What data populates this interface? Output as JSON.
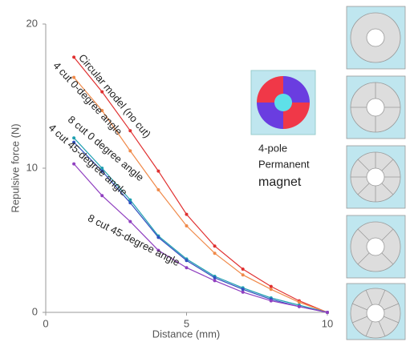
{
  "chart_data": {
    "type": "line",
    "x_label": "Distance (mm)",
    "y_label": "Repulsive force (N)",
    "x": [
      1,
      2,
      3,
      4,
      5,
      6,
      7,
      8,
      9,
      10
    ],
    "series": [
      {
        "name": "Circular model (no cut)",
        "color": "#e03030",
        "values": [
          17.7,
          15.3,
          12.6,
          9.8,
          6.8,
          4.6,
          3.0,
          1.8,
          0.8,
          0
        ]
      },
      {
        "name": "4 cut 0-degree angle",
        "color": "#f08a4a",
        "values": [
          16.3,
          14.0,
          11.2,
          8.5,
          6.0,
          4.1,
          2.6,
          1.6,
          0.7,
          0
        ]
      },
      {
        "name": "8 cut 0 degree angle",
        "color": "#1fa0b0",
        "values": [
          12.1,
          10.0,
          7.8,
          5.3,
          3.7,
          2.5,
          1.7,
          1.0,
          0.5,
          0
        ]
      },
      {
        "name": "4 cut 45-degree angle",
        "color": "#3050c0",
        "values": [
          11.8,
          9.8,
          7.6,
          5.2,
          3.6,
          2.4,
          1.6,
          0.9,
          0.4,
          0
        ]
      },
      {
        "name": "8 cut 45-degree angle",
        "color": "#9040c0",
        "values": [
          10.3,
          8.1,
          6.3,
          4.3,
          3.1,
          2.2,
          1.4,
          0.8,
          0.4,
          0
        ]
      }
    ],
    "xlim": [
      0,
      10
    ],
    "xticks": [
      0,
      5,
      10
    ],
    "ylim": [
      0,
      20
    ],
    "yticks": [
      0,
      10,
      20
    ],
    "annotation": [
      "4-pole",
      "Permanent",
      "magnet"
    ]
  }
}
